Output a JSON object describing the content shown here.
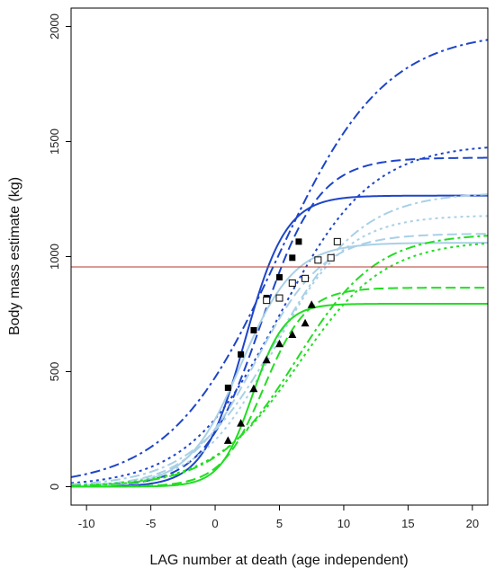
{
  "chart_data": {
    "type": "line",
    "title": "",
    "xlabel": "LAG number at death (age independent)",
    "ylabel": "Body mass estimate (kg)",
    "xlim": [
      -11.2,
      21.2
    ],
    "ylim": [
      -80,
      2080
    ],
    "xticks": [
      -10,
      -5,
      0,
      5,
      10,
      15,
      20
    ],
    "yticks": [
      0,
      500,
      1000,
      1500,
      2000
    ],
    "grid": false,
    "legend": "none",
    "hline": {
      "y": 955,
      "color": "#b03a2e"
    },
    "colors": {
      "dark": "#1e45c8",
      "light": "#a9d0e6",
      "green": "#22dd22"
    },
    "series": [
      {
        "group": "dark",
        "style": "solid",
        "curve": {
          "A": 1265,
          "k": 0.62,
          "t0": 2.3
        }
      },
      {
        "group": "dark",
        "style": "dashed",
        "curve": {
          "A": 1430,
          "k": 0.45,
          "t0": 3.6
        }
      },
      {
        "group": "dark",
        "style": "dotted",
        "curve": {
          "A": 1490,
          "k": 0.28,
          "t0": 5.0
        }
      },
      {
        "group": "dark",
        "style": "dashdot",
        "curve": {
          "A": 1980,
          "k": 0.24,
          "t0": 4.8
        }
      },
      {
        "group": "light",
        "style": "solid",
        "curve": {
          "A": 1060,
          "k": 0.48,
          "t0": 2.0
        }
      },
      {
        "group": "light",
        "style": "dashed",
        "curve": {
          "A": 1100,
          "k": 0.38,
          "t0": 3.2
        }
      },
      {
        "group": "light",
        "style": "dotted",
        "curve": {
          "A": 1180,
          "k": 0.35,
          "t0": 4.5
        }
      },
      {
        "group": "light",
        "style": "dashdot",
        "curve": {
          "A": 1280,
          "k": 0.3,
          "t0": 4.8
        }
      },
      {
        "group": "green",
        "style": "solid",
        "curve": {
          "A": 795,
          "k": 0.8,
          "t0": 2.9
        }
      },
      {
        "group": "green",
        "style": "dashed",
        "curve": {
          "A": 865,
          "k": 0.6,
          "t0": 3.8
        }
      },
      {
        "group": "green",
        "style": "dotted",
        "curve": {
          "A": 1070,
          "k": 0.3,
          "t0": 6.5
        }
      },
      {
        "group": "green",
        "style": "dashdot",
        "curve": {
          "A": 1100,
          "k": 0.32,
          "t0": 6.3
        }
      }
    ],
    "points": [
      {
        "name": "filled-squares",
        "marker": "square-filled",
        "x": [
          1,
          2,
          3,
          4,
          5,
          6,
          6.5
        ],
        "y": [
          430,
          575,
          680,
          820,
          910,
          995,
          1065
        ]
      },
      {
        "name": "open-squares",
        "marker": "square-open",
        "x": [
          4,
          5,
          6,
          7,
          8,
          9,
          9.5
        ],
        "y": [
          810,
          820,
          885,
          905,
          985,
          995,
          1065
        ]
      },
      {
        "name": "filled-triangles",
        "marker": "triangle-filled",
        "x": [
          1,
          2,
          3,
          4,
          5,
          6,
          7,
          7.5
        ],
        "y": [
          200,
          275,
          425,
          550,
          620,
          660,
          710,
          790
        ]
      }
    ]
  }
}
